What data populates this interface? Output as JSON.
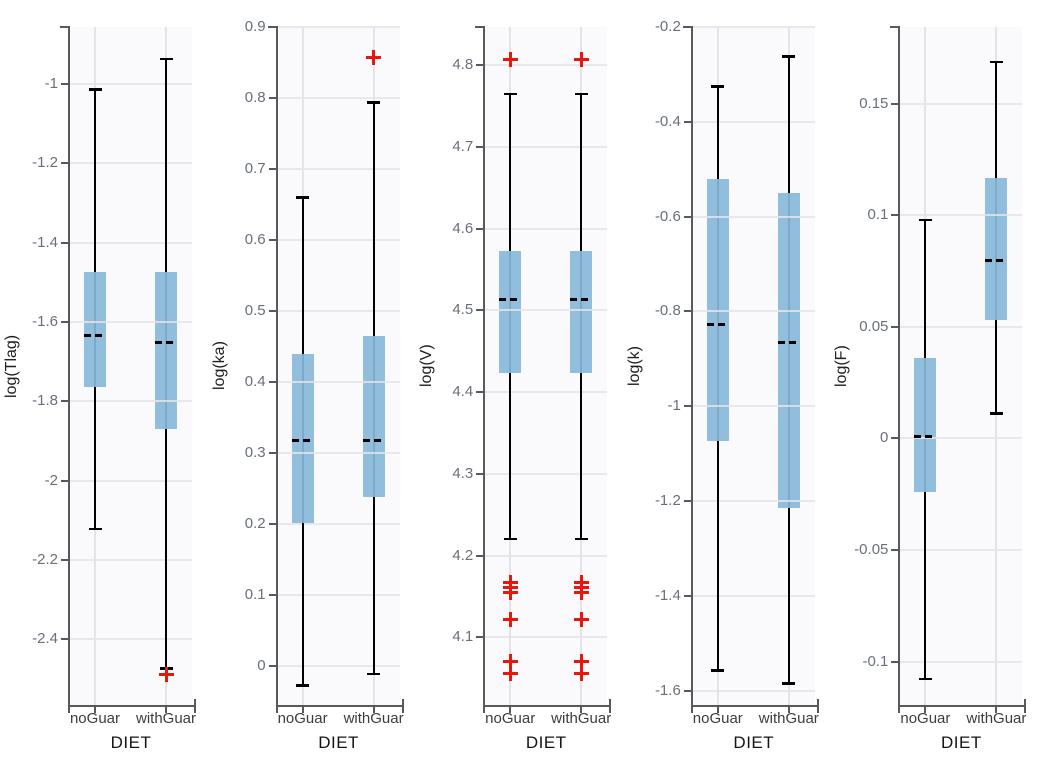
{
  "figure": {
    "xlabel": "DIET",
    "categories": [
      "noGuar",
      "withGuar"
    ]
  },
  "style": {
    "panel_bg": "#fafafc",
    "box_fill": "#92bedd",
    "box_center_line": "#7ea9c7",
    "whisker_color": "#000000",
    "median_color": "#000000",
    "outlier_color": "#e8170d",
    "spine_color": "#595959",
    "h_grid_color": "rgba(228,228,233,0.85)",
    "v_grid_color": "#e3e3e8",
    "ytick_color": "#68707c",
    "category_color": "#3d3d3d",
    "xlabel_color": "#141414",
    "ylabel_color": "#202020"
  },
  "chart_data": [
    {
      "type": "boxplot",
      "ylabel": "log(Tlag)",
      "xlabel": "DIET",
      "categories": [
        "noGuar",
        "withGuar"
      ],
      "ylim": [
        -2.566,
        -0.856
      ],
      "grid": true,
      "yticks": [
        {
          "v": -1.0,
          "label": "-1"
        },
        {
          "v": -1.2,
          "label": "-1.2"
        },
        {
          "v": -1.4,
          "label": "-1.4"
        },
        {
          "v": -1.6,
          "label": "-1.6"
        },
        {
          "v": -1.8,
          "label": "-1.8"
        },
        {
          "v": -2.0,
          "label": "-2"
        },
        {
          "v": -2.2,
          "label": "-2.2"
        },
        {
          "v": -2.4,
          "label": "-2.4"
        }
      ],
      "series": [
        {
          "category": "noGuar",
          "whisker_high": -1.013,
          "q3": -1.473,
          "median": -1.633,
          "q1": -1.763,
          "whisker_low": -2.123,
          "outliers": []
        },
        {
          "category": "withGuar",
          "whisker_high": -0.936,
          "q3": -1.474,
          "median": -1.652,
          "q1": -1.87,
          "whisker_low": -2.475,
          "outliers": [
            -2.488
          ]
        }
      ]
    },
    {
      "type": "boxplot",
      "ylabel": "log(ka)",
      "xlabel": "DIET",
      "categories": [
        "noGuar",
        "withGuar"
      ],
      "ylim": [
        -0.055,
        0.9
      ],
      "grid": true,
      "yticks": [
        {
          "v": 0.9,
          "label": "0.9"
        },
        {
          "v": 0.8,
          "label": "0.8"
        },
        {
          "v": 0.7,
          "label": "0.7"
        },
        {
          "v": 0.6,
          "label": "0.6"
        },
        {
          "v": 0.5,
          "label": "0.5"
        },
        {
          "v": 0.4,
          "label": "0.4"
        },
        {
          "v": 0.3,
          "label": "0.3"
        },
        {
          "v": 0.2,
          "label": "0.2"
        },
        {
          "v": 0.1,
          "label": "0.1"
        },
        {
          "v": 0.0,
          "label": "0"
        }
      ],
      "series": [
        {
          "category": "noGuar",
          "whisker_high": 0.66,
          "q3": 0.44,
          "median": 0.317,
          "q1": 0.202,
          "whisker_low": -0.028,
          "outliers": []
        },
        {
          "category": "withGuar",
          "whisker_high": 0.794,
          "q3": 0.465,
          "median": 0.317,
          "q1": 0.238,
          "whisker_low": -0.012,
          "outliers": [
            0.857
          ]
        }
      ]
    },
    {
      "type": "boxplot",
      "ylabel": "log(V)",
      "xlabel": "DIET",
      "categories": [
        "noGuar",
        "withGuar"
      ],
      "ylim": [
        4.017,
        4.847
      ],
      "grid": true,
      "yticks": [
        {
          "v": 4.8,
          "label": "4.8"
        },
        {
          "v": 4.7,
          "label": "4.7"
        },
        {
          "v": 4.6,
          "label": "4.6"
        },
        {
          "v": 4.5,
          "label": "4.5"
        },
        {
          "v": 4.4,
          "label": "4.4"
        },
        {
          "v": 4.3,
          "label": "4.3"
        },
        {
          "v": 4.2,
          "label": "4.2"
        },
        {
          "v": 4.1,
          "label": "4.1"
        }
      ],
      "series": [
        {
          "category": "noGuar",
          "whisker_high": 4.765,
          "q3": 4.573,
          "median": 4.514,
          "q1": 4.424,
          "whisker_low": 4.22,
          "outliers": [
            4.807,
            4.167,
            4.161,
            4.155,
            4.122,
            4.07,
            4.056
          ]
        },
        {
          "category": "withGuar",
          "whisker_high": 4.765,
          "q3": 4.573,
          "median": 4.514,
          "q1": 4.424,
          "whisker_low": 4.22,
          "outliers": [
            4.807,
            4.167,
            4.161,
            4.155,
            4.122,
            4.07,
            4.056
          ]
        }
      ]
    },
    {
      "type": "boxplot",
      "ylabel": "log(k)",
      "xlabel": "DIET",
      "categories": [
        "noGuar",
        "withGuar"
      ],
      "ylim": [
        -1.63,
        -0.2
      ],
      "grid": true,
      "yticks": [
        {
          "v": -0.2,
          "label": "-0.2"
        },
        {
          "v": -0.4,
          "label": "-0.4"
        },
        {
          "v": -0.6,
          "label": "-0.6"
        },
        {
          "v": -0.8,
          "label": "-0.8"
        },
        {
          "v": -1.0,
          "label": "-1"
        },
        {
          "v": -1.2,
          "label": "-1.2"
        },
        {
          "v": -1.4,
          "label": "-1.4"
        },
        {
          "v": -1.6,
          "label": "-1.6"
        }
      ],
      "series": [
        {
          "category": "noGuar",
          "whisker_high": -0.325,
          "q3": -0.52,
          "median": -0.828,
          "q1": -1.073,
          "whisker_low": -1.558,
          "outliers": []
        },
        {
          "category": "withGuar",
          "whisker_high": -0.262,
          "q3": -0.55,
          "median": -0.865,
          "q1": -1.215,
          "whisker_low": -1.585,
          "outliers": []
        }
      ]
    },
    {
      "type": "boxplot",
      "ylabel": "log(F)",
      "xlabel": "DIET",
      "categories": [
        "noGuar",
        "withGuar"
      ],
      "ylim": [
        -0.1195,
        0.1845
      ],
      "grid": true,
      "yticks": [
        {
          "v": 0.15,
          "label": "0.15"
        },
        {
          "v": 0.1,
          "label": "0.1"
        },
        {
          "v": 0.05,
          "label": "0.05"
        },
        {
          "v": 0.0,
          "label": "0"
        },
        {
          "v": -0.05,
          "label": "-0.05"
        },
        {
          "v": -0.1,
          "label": "-0.1"
        }
      ],
      "series": [
        {
          "category": "noGuar",
          "whisker_high": 0.098,
          "q3": 0.036,
          "median": 0.001,
          "q1": -0.024,
          "whisker_low": -0.108,
          "outliers": []
        },
        {
          "category": "withGuar",
          "whisker_high": 0.169,
          "q3": 0.117,
          "median": 0.08,
          "q1": 0.053,
          "whisker_low": 0.011,
          "outliers": []
        }
      ]
    }
  ]
}
